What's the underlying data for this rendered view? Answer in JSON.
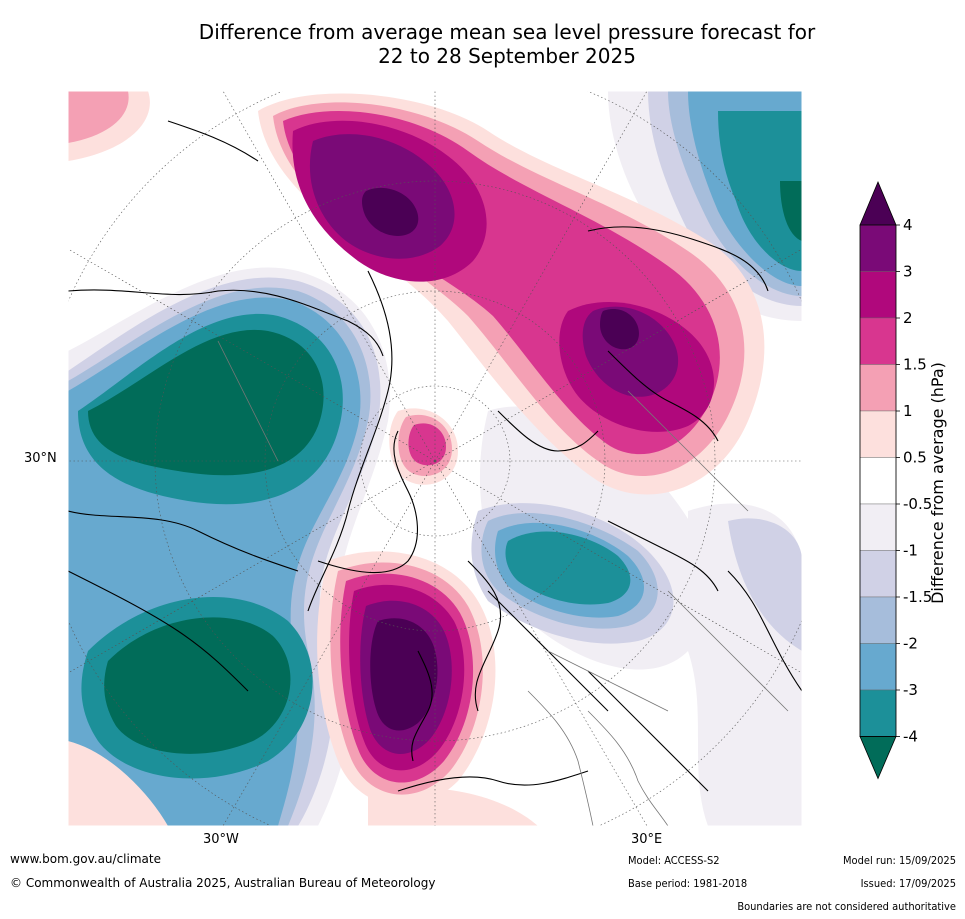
{
  "title_line1": "Difference from average mean sea level pressure forecast for",
  "title_line2": "22 to 28 September 2025",
  "map": {
    "lat_label": "30°N",
    "lon_labels": [
      "30°W",
      "30°E"
    ]
  },
  "colorbar": {
    "label": "Difference from average (hPa)",
    "ticks": [
      "4",
      "3",
      "2",
      "1.5",
      "1",
      "0.5",
      "-0.5",
      "-1",
      "-1.5",
      "-2",
      "-3",
      "-4"
    ],
    "colors": [
      "#4b0055",
      "#7a0a77",
      "#b0087c",
      "#d8368f",
      "#f4a0b4",
      "#fde0dd",
      "#ffffff",
      "#f1eef4",
      "#d0d1e6",
      "#a6bddb",
      "#67a9cf",
      "#1c9099",
      "#016c59"
    ],
    "over_color": "#4b0055",
    "under_color": "#016c59"
  },
  "footer": {
    "website": "www.bom.gov.au/climate",
    "copyright": "© Commonwealth of Australia 2025, Australian Bureau of Meteorology",
    "model": "Model: ACCESS-S2",
    "base_period": "Base period: 1981-2018",
    "model_run": "Model run: 15/09/2025",
    "issued": "Issued: 17/09/2025",
    "disclaimer": "Boundaries are not considered authoritative"
  }
}
